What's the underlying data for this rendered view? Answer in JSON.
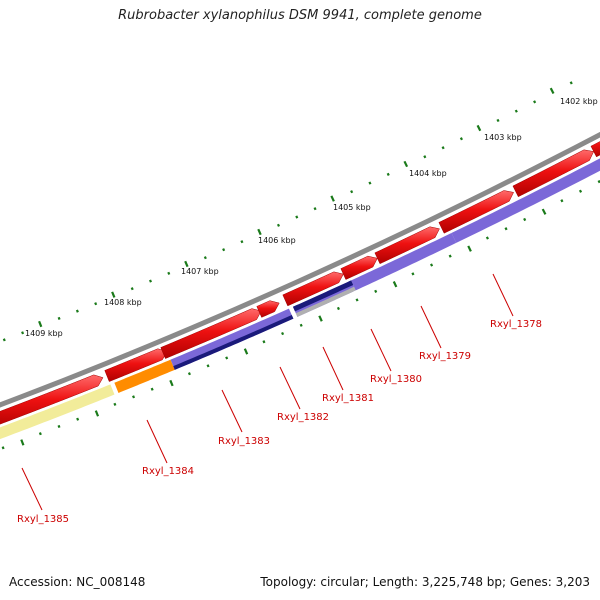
{
  "title": "Rubrobacter xylanophilus DSM 9941, complete genome",
  "footer": {
    "accession": "Accession: NC_008148",
    "topology": "Topology: circular; Length: 3,225,748 bp; Genes: 3,203"
  },
  "colors": {
    "backbone": "#8a8a8a",
    "forward_cds": "#ee1111",
    "reverse_cds_blue": "#7b68d8",
    "reverse_cds_navy": "#1a1a7a",
    "reverse_cds_orange": "#ff8c00",
    "reverse_cds_yellow": "#f2ec9a",
    "reverse_cds_grey": "#b0b0b0",
    "tick": "#1a7a1a",
    "label": "#cc0000"
  },
  "kbp_labels": [
    "1402 kbp",
    "1403 kbp",
    "1404 kbp",
    "1405 kbp",
    "1406 kbp",
    "1407 kbp",
    "1408 kbp",
    "1409 kbp"
  ],
  "genes": [
    "Rxyl_1378",
    "Rxyl_1379",
    "Rxyl_1380",
    "Rxyl_1381",
    "Rxyl_1382",
    "Rxyl_1383",
    "Rxyl_1384",
    "Rxyl_1385"
  ]
}
